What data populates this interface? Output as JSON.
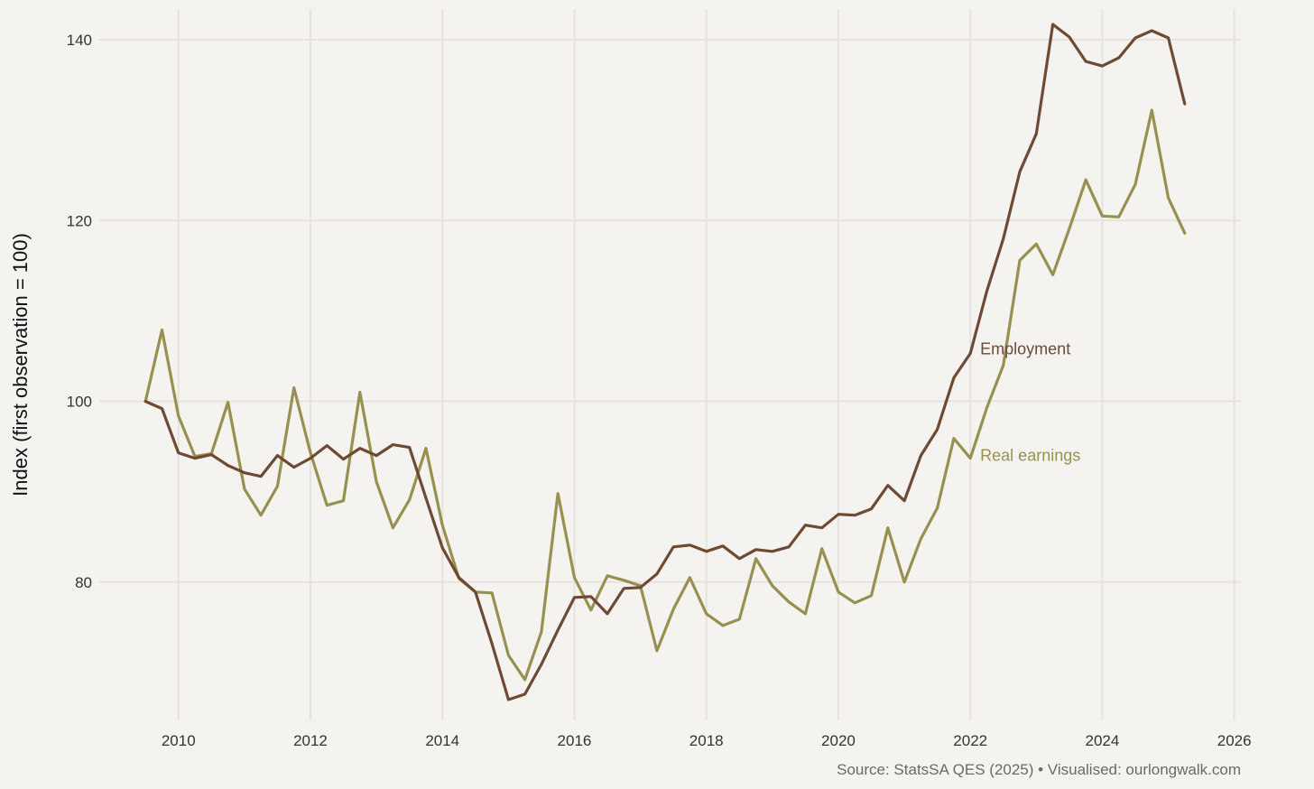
{
  "chart_data": {
    "type": "line",
    "title": "",
    "xlabel": "",
    "ylabel": "Index (first observation = 100)",
    "caption": "Source: StatsSA QES (2025) • Visualised: ourlongwalk.com",
    "xlim": [
      2008.8,
      2026.1
    ],
    "ylim": [
      64.7,
      143.4
    ],
    "x_ticks": [
      2010,
      2012,
      2014,
      2016,
      2018,
      2020,
      2022,
      2024,
      2026
    ],
    "y_ticks": [
      80,
      100,
      120,
      140
    ],
    "grid": true,
    "legend": "direct labels",
    "x": [
      2009.5,
      2009.75,
      2010.0,
      2010.25,
      2010.5,
      2010.75,
      2011.0,
      2011.25,
      2011.5,
      2011.75,
      2012.0,
      2012.25,
      2012.5,
      2012.75,
      2013.0,
      2013.25,
      2013.5,
      2013.75,
      2014.0,
      2014.25,
      2014.5,
      2014.75,
      2015.0,
      2015.25,
      2015.5,
      2015.75,
      2016.0,
      2016.25,
      2016.5,
      2016.75,
      2017.0,
      2017.25,
      2017.5,
      2017.75,
      2018.0,
      2018.25,
      2018.5,
      2018.75,
      2019.0,
      2019.25,
      2019.5,
      2019.75,
      2020.0,
      2020.25,
      2020.5,
      2020.75,
      2021.0,
      2021.25,
      2021.5,
      2021.75,
      2022.0,
      2022.25,
      2022.5,
      2022.75,
      2023.0,
      2023.25,
      2023.5,
      2023.75,
      2024.0,
      2024.25,
      2024.5,
      2024.75,
      2025.0,
      2025.25
    ],
    "series": [
      {
        "name": "Employment",
        "color": "#6e4a35",
        "values": [
          100.0,
          99.2,
          94.3,
          93.7,
          94.1,
          92.9,
          92.1,
          91.7,
          94.0,
          92.7,
          93.7,
          95.1,
          93.6,
          94.8,
          94.0,
          95.2,
          94.9,
          89.3,
          83.8,
          80.5,
          78.9,
          73.2,
          67.0,
          67.6,
          70.9,
          74.7,
          78.3,
          78.4,
          76.5,
          79.3,
          79.4,
          80.9,
          83.9,
          84.1,
          83.4,
          84.0,
          82.6,
          83.6,
          83.4,
          83.9,
          86.3,
          86.0,
          87.5,
          87.4,
          88.1,
          90.7,
          89.0,
          94.0,
          96.9,
          102.6,
          105.3,
          112.2,
          118.0,
          125.4,
          129.6,
          141.7,
          140.3,
          137.6,
          137.1,
          138.0,
          140.2,
          141.0,
          140.2,
          132.9
        ]
      },
      {
        "name": "Real earnings",
        "color": "#979050",
        "values": [
          100.0,
          107.9,
          98.4,
          93.9,
          94.2,
          99.9,
          90.3,
          87.4,
          90.6,
          101.5,
          94.3,
          88.5,
          89.0,
          101.0,
          91.1,
          86.0,
          89.1,
          94.8,
          86.3,
          80.4,
          78.9,
          78.8,
          71.9,
          69.2,
          74.5,
          89.8,
          80.5,
          76.9,
          80.7,
          80.2,
          79.6,
          72.4,
          77.0,
          80.5,
          76.5,
          75.2,
          75.9,
          82.6,
          79.6,
          77.8,
          76.5,
          83.7,
          78.9,
          77.7,
          78.5,
          86.0,
          80.0,
          84.8,
          88.2,
          95.9,
          93.7,
          99.3,
          104.0,
          115.6,
          117.4,
          114.0,
          119.1,
          124.5,
          120.5,
          120.4,
          124.0,
          132.2,
          122.5,
          118.6
        ]
      }
    ],
    "annotations": [
      {
        "series": "Employment",
        "text": "Employment",
        "x": 2022.15,
        "y": 105.2,
        "color": "#6e4a35"
      },
      {
        "series": "Real earnings",
        "text": "Real earnings",
        "x": 2022.15,
        "y": 93.4,
        "color": "#979050"
      }
    ]
  }
}
